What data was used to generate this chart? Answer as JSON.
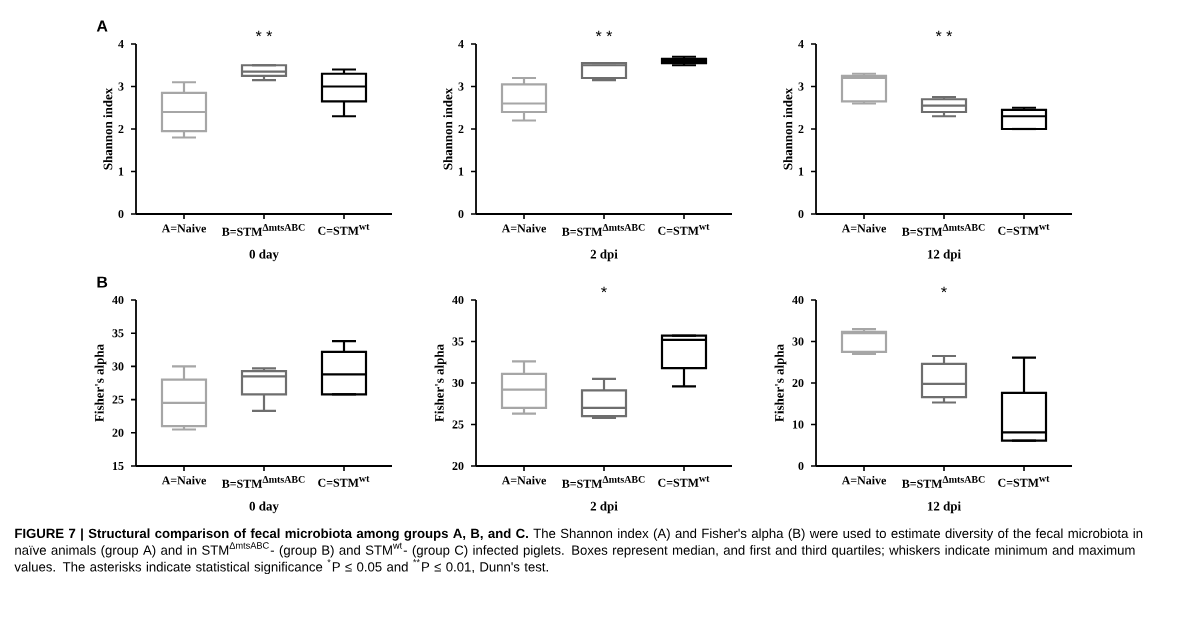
{
  "chart_data": [
    {
      "type": "box",
      "xlabel": "0 day",
      "ylabel": "Shannon index",
      "categories": [
        "A=Naive",
        "B=STM$^{ΔmtsABC}$",
        "C=STM$^{wt}$"
      ],
      "colors": [
        "#a6a6a6",
        "#6e6e6e",
        "#000000"
      ],
      "boxes": [
        {
          "low": 1.8,
          "q1": 1.95,
          "median": 2.4,
          "q3": 2.85,
          "high": 3.1
        },
        {
          "low": 3.15,
          "q1": 3.25,
          "median": 3.35,
          "q3": 3.5,
          "high": 3.5
        },
        {
          "low": 2.3,
          "q1": 2.65,
          "median": 3.0,
          "q3": 3.3,
          "high": 3.4
        }
      ],
      "ylim": [
        0,
        4
      ],
      "yticks": [
        0,
        1,
        2,
        3,
        4
      ],
      "annotations": [
        "A",
        "* *"
      ]
    },
    {
      "type": "box",
      "xlabel": "2 dpi",
      "ylabel": "Shannon index",
      "categories": [
        "A=Naive",
        "B=STM$^{ΔmtsABC}$",
        "C=STM$^{wt}$"
      ],
      "colors": [
        "#a6a6a6",
        "#6e6e6e",
        "#000000"
      ],
      "boxes": [
        {
          "low": 2.2,
          "q1": 2.4,
          "median": 2.6,
          "q3": 3.05,
          "high": 3.2
        },
        {
          "low": 3.15,
          "q1": 3.2,
          "median": 3.5,
          "q3": 3.55,
          "high": 3.55
        },
        {
          "low": 3.5,
          "q1": 3.55,
          "median": 3.6,
          "q3": 3.65,
          "high": 3.7
        }
      ],
      "ylim": [
        0,
        4
      ],
      "yticks": [
        0,
        1,
        2,
        3,
        4
      ],
      "annotations": [
        "* *"
      ]
    },
    {
      "type": "box",
      "xlabel": "12 dpi",
      "ylabel": "Shannon index",
      "categories": [
        "A=Naive",
        "B=STM$^{ΔmtsABC}$",
        "C=STM$^{wt}$"
      ],
      "colors": [
        "#a6a6a6",
        "#6e6e6e",
        "#000000"
      ],
      "boxes": [
        {
          "low": 2.6,
          "q1": 2.65,
          "median": 3.2,
          "q3": 3.25,
          "high": 3.3
        },
        {
          "low": 2.3,
          "q1": 2.4,
          "median": 2.55,
          "q3": 2.7,
          "high": 2.75
        },
        {
          "low": 2.0,
          "q1": 2.0,
          "median": 2.3,
          "q3": 2.45,
          "high": 2.5
        }
      ],
      "ylim": [
        0,
        4
      ],
      "yticks": [
        0,
        1,
        2,
        3,
        4
      ],
      "annotations": [
        "* *"
      ]
    },
    {
      "type": "box",
      "xlabel": "0 day",
      "ylabel": "Fisher's alpha",
      "categories": [
        "A=Naive",
        "B=STM$^{ΔmtsABC}$",
        "C=STM$^{wt}$"
      ],
      "colors": [
        "#a6a6a6",
        "#6e6e6e",
        "#000000"
      ],
      "boxes": [
        {
          "low": 20.5,
          "q1": 21,
          "median": 24.5,
          "q3": 28,
          "high": 30
        },
        {
          "low": 23.3,
          "q1": 25.8,
          "median": 28.5,
          "q3": 29.3,
          "high": 29.7
        },
        {
          "low": 25.8,
          "q1": 25.8,
          "median": 28.8,
          "q3": 32.2,
          "high": 33.8
        }
      ],
      "ylim": [
        15,
        40
      ],
      "yticks": [
        15,
        20,
        25,
        30,
        35,
        40
      ],
      "annotations": [
        "B"
      ]
    },
    {
      "type": "box",
      "xlabel": "2 dpi",
      "ylabel": "Fisher's alpha",
      "categories": [
        "A=Naive",
        "B=STM$^{ΔmtsABC}$",
        "C=STM$^{wt}$"
      ],
      "colors": [
        "#a6a6a6",
        "#6e6e6e",
        "#000000"
      ],
      "boxes": [
        {
          "low": 26.3,
          "q1": 27,
          "median": 29.2,
          "q3": 31.1,
          "high": 32.6
        },
        {
          "low": 25.8,
          "q1": 26,
          "median": 27,
          "q3": 29.1,
          "high": 30.5
        },
        {
          "low": 29.6,
          "q1": 31.8,
          "median": 35.2,
          "q3": 35.7,
          "high": 35.7
        }
      ],
      "ylim": [
        20,
        40
      ],
      "yticks": [
        20,
        25,
        30,
        35,
        40
      ],
      "annotations": [
        "*"
      ]
    },
    {
      "type": "box",
      "xlabel": "12 dpi",
      "ylabel": "Fisher's alpha",
      "categories": [
        "A=Naive",
        "B=STM$^{ΔmtsABC}$",
        "C=STM$^{wt}$"
      ],
      "colors": [
        "#a6a6a6",
        "#6e6e6e",
        "#000000"
      ],
      "boxes": [
        {
          "low": 27,
          "q1": 27.5,
          "median": 32,
          "q3": 32.3,
          "high": 33
        },
        {
          "low": 15.3,
          "q1": 16.6,
          "median": 19.8,
          "q3": 24.6,
          "high": 26.5
        },
        {
          "low": 6.1,
          "q1": 6.1,
          "median": 8.1,
          "q3": 17.6,
          "high": 26.1
        }
      ],
      "ylim": [
        0,
        40
      ],
      "yticks": [
        0,
        10,
        20,
        30,
        40
      ],
      "annotations": [
        "*",
        "**FIGURE 7 | Structural comparison of fecal microbiota among groups A, B, and C.** The Shannon index (A) and Fisher's alpha (B) were used to estimate diversity of the fecal microbiota in naïve animals (group A) and in STM$^{ΔmtsABC}$- (group B) and STM$^{wt}$- (group C) infected piglets. Boxes represent median, and first and third quartiles; whiskers indicate minimum and maximum values. The asterisks indicate statistical significance $^{*}$P ≤ 0.05 and $^{**}$P ≤ 0.01, Dunn's test."
      ]
    }
  ]
}
